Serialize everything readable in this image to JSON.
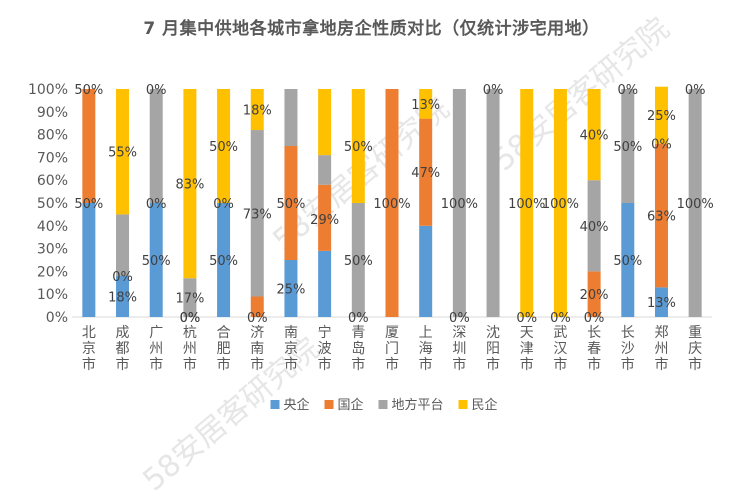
{
  "chart_data": {
    "type": "stacked-bar-100",
    "title": "7 月集中供地各城市拿地房企性质对比（仅统计涉宅用地）",
    "categories": [
      "北京市",
      "成都市",
      "广州市",
      "杭州市",
      "合肥市",
      "济南市",
      "南京市",
      "宁波市",
      "青岛市",
      "厦门市",
      "上海市",
      "深圳市",
      "沈阳市",
      "天津市",
      "武汉市",
      "长春市",
      "长沙市",
      "郑州市",
      "重庆市"
    ],
    "series": [
      {
        "name": "央企",
        "color": "#5b9bd5",
        "values": [
          50,
          18,
          50,
          0,
          50,
          0,
          25,
          29,
          0,
          0,
          40,
          0,
          0,
          0,
          0,
          0,
          50,
          13,
          0
        ]
      },
      {
        "name": "国企",
        "color": "#ed7d31",
        "values": [
          50,
          0,
          0,
          0,
          0,
          9,
          50,
          29,
          0,
          100,
          47,
          0,
          0,
          0,
          0,
          20,
          0,
          63,
          0
        ]
      },
      {
        "name": "地方平台",
        "color": "#a5a5a5",
        "values": [
          0,
          27,
          50,
          17,
          0,
          73,
          25,
          13,
          50,
          0,
          0,
          100,
          100,
          0,
          0,
          40,
          50,
          0,
          100
        ]
      },
      {
        "name": "民企",
        "color": "#ffc000",
        "values": [
          0,
          55,
          0,
          83,
          50,
          18,
          0,
          29,
          50,
          0,
          13,
          0,
          0,
          100,
          100,
          40,
          0,
          25,
          0
        ]
      }
    ],
    "labels": [
      [
        {
          "t": "50%",
          "y": 50,
          "s": 0
        },
        {
          "t": "50%",
          "y": 100,
          "s": 1
        }
      ],
      [
        {
          "t": "18%",
          "y": 9,
          "s": 0
        },
        {
          "t": "0%",
          "y": 18,
          "s": 1
        },
        {
          "t": "55%",
          "y": 72.5,
          "s": 3
        }
      ],
      [
        {
          "t": "50%",
          "y": 25,
          "s": 0
        },
        {
          "t": "0%",
          "y": 50,
          "s": 1
        },
        {
          "t": "0%",
          "y": 100,
          "s": 3
        }
      ],
      [
        {
          "t": "0%",
          "y": 0,
          "s": 0
        },
        {
          "t": "0%",
          "y": 0,
          "s": 1
        },
        {
          "t": "17%",
          "y": 8.5,
          "s": 2
        },
        {
          "t": "83%",
          "y": 58.5,
          "s": 3
        }
      ],
      [
        {
          "t": "50%",
          "y": 25,
          "s": 0
        },
        {
          "t": "0%",
          "y": 50,
          "s": 1
        },
        {
          "t": "50%",
          "y": 75,
          "s": 3
        }
      ],
      [
        {
          "t": "0%",
          "y": 0,
          "s": 0
        },
        {
          "t": "73%",
          "y": 45.5,
          "s": 2
        },
        {
          "t": "18%",
          "y": 91,
          "s": 3
        }
      ],
      [
        {
          "t": "25%",
          "y": 12.5,
          "s": 0
        },
        {
          "t": "50%",
          "y": 50,
          "s": 1
        }
      ],
      [
        {
          "t": "29%",
          "y": 43,
          "s": 1
        }
      ],
      [
        {
          "t": "0%",
          "y": 0,
          "s": 0
        },
        {
          "t": "50%",
          "y": 25,
          "s": 2
        },
        {
          "t": "50%",
          "y": 75,
          "s": 3
        }
      ],
      [
        {
          "t": "100%",
          "y": 50,
          "s": 1
        }
      ],
      [
        {
          "t": "47%",
          "y": 63.5,
          "s": 1
        },
        {
          "t": "13%",
          "y": 93.5,
          "s": 3
        }
      ],
      [
        {
          "t": "0%",
          "y": 0,
          "s": 0
        },
        {
          "t": "100%",
          "y": 50,
          "s": 2
        }
      ],
      [
        {
          "t": "0%",
          "y": 100,
          "s": 3
        }
      ],
      [
        {
          "t": "0%",
          "y": 0,
          "s": 0
        },
        {
          "t": "100%",
          "y": 50,
          "s": 3
        }
      ],
      [
        {
          "t": "0%",
          "y": 0,
          "s": 0
        },
        {
          "t": "100%",
          "y": 50,
          "s": 3
        }
      ],
      [
        {
          "t": "0%",
          "y": 0,
          "s": 0
        },
        {
          "t": "20%",
          "y": 10,
          "s": 1
        },
        {
          "t": "40%",
          "y": 40,
          "s": 2
        },
        {
          "t": "40%",
          "y": 80,
          "s": 3
        }
      ],
      [
        {
          "t": "50%",
          "y": 25,
          "s": 0
        },
        {
          "t": "50%",
          "y": 75,
          "s": 2
        },
        {
          "t": "0%",
          "y": 100,
          "s": 3
        }
      ],
      [
        {
          "t": "13%",
          "y": 6.5,
          "s": 0
        },
        {
          "t": "63%",
          "y": 44.5,
          "s": 1
        },
        {
          "t": "0%",
          "y": 76,
          "s": 2
        },
        {
          "t": "25%",
          "y": 88.5,
          "s": 3
        }
      ],
      [
        {
          "t": "100%",
          "y": 50,
          "s": 2
        },
        {
          "t": "0%",
          "y": 100,
          "s": 3
        }
      ]
    ],
    "yticks": [
      "0%",
      "10%",
      "20%",
      "30%",
      "40%",
      "50%",
      "60%",
      "70%",
      "80%",
      "90%",
      "100%"
    ],
    "ylim": [
      0,
      100
    ],
    "legend_position": "bottom"
  },
  "watermark": "58安居客研究院"
}
